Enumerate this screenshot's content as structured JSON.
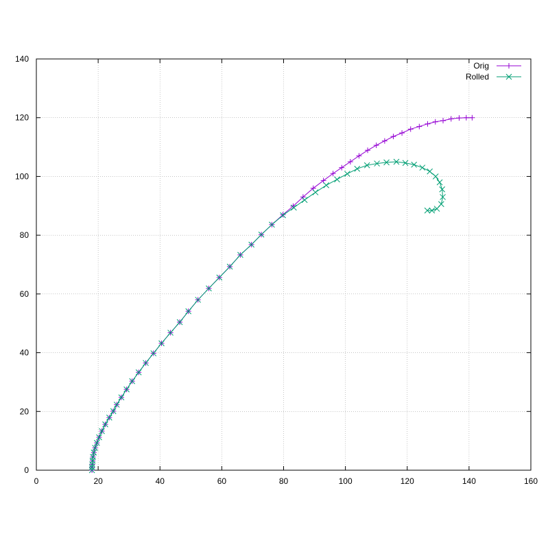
{
  "chart_data": {
    "type": "line",
    "title": "",
    "xlabel": "",
    "ylabel": "",
    "xlim": [
      0,
      160
    ],
    "ylim": [
      0,
      140
    ],
    "x_ticks": [
      0,
      20,
      40,
      60,
      80,
      100,
      120,
      140,
      160
    ],
    "y_ticks": [
      0,
      20,
      40,
      60,
      80,
      100,
      120,
      140
    ],
    "grid": true,
    "legend_position": "top-right",
    "series": [
      {
        "name": "Orig",
        "color": "#9400d3",
        "marker": "plus",
        "points": [
          [
            18.0,
            0.0
          ],
          [
            18.0,
            1.0
          ],
          [
            18.1,
            2.0
          ],
          [
            18.2,
            3.2
          ],
          [
            18.3,
            4.5
          ],
          [
            18.6,
            6.0
          ],
          [
            19.0,
            7.6
          ],
          [
            19.6,
            9.3
          ],
          [
            20.3,
            11.2
          ],
          [
            21.2,
            13.3
          ],
          [
            22.3,
            15.6
          ],
          [
            23.6,
            17.9
          ],
          [
            24.9,
            20.1
          ],
          [
            26.0,
            22.3
          ],
          [
            27.5,
            24.8
          ],
          [
            29.2,
            27.5
          ],
          [
            31.0,
            30.3
          ],
          [
            33.1,
            33.3
          ],
          [
            35.4,
            36.5
          ],
          [
            37.9,
            39.8
          ],
          [
            40.5,
            43.2
          ],
          [
            43.4,
            46.8
          ],
          [
            46.4,
            50.4
          ],
          [
            49.2,
            54.1
          ],
          [
            52.3,
            58.0
          ],
          [
            55.8,
            61.9
          ],
          [
            59.2,
            65.6
          ],
          [
            62.6,
            69.3
          ],
          [
            66.0,
            73.3
          ],
          [
            69.6,
            76.8
          ],
          [
            72.8,
            80.2
          ],
          [
            76.2,
            83.6
          ],
          [
            79.8,
            87.0
          ],
          [
            83.1,
            89.9
          ],
          [
            86.3,
            93.0
          ],
          [
            89.6,
            96.0
          ],
          [
            92.9,
            98.6
          ],
          [
            96.0,
            101.0
          ],
          [
            98.8,
            103.0
          ],
          [
            101.6,
            105.0
          ],
          [
            104.4,
            107.0
          ],
          [
            107.2,
            108.9
          ],
          [
            110.0,
            110.6
          ],
          [
            112.7,
            112.1
          ],
          [
            115.5,
            113.6
          ],
          [
            118.3,
            114.8
          ],
          [
            121.1,
            116.1
          ],
          [
            123.9,
            117.0
          ],
          [
            126.6,
            117.9
          ],
          [
            129.1,
            118.6
          ],
          [
            131.6,
            119.0
          ],
          [
            134.2,
            119.6
          ],
          [
            136.8,
            119.9
          ],
          [
            139.1,
            120.0
          ],
          [
            141.0,
            120.0
          ]
        ]
      },
      {
        "name": "Rolled",
        "color": "#009e73",
        "marker": "cross",
        "points": [
          [
            18.0,
            0.0
          ],
          [
            18.0,
            1.0
          ],
          [
            18.1,
            2.0
          ],
          [
            18.2,
            3.2
          ],
          [
            18.3,
            4.5
          ],
          [
            18.6,
            6.0
          ],
          [
            19.0,
            7.6
          ],
          [
            19.6,
            9.3
          ],
          [
            20.3,
            11.2
          ],
          [
            21.2,
            13.3
          ],
          [
            22.3,
            15.6
          ],
          [
            23.6,
            17.9
          ],
          [
            24.9,
            20.1
          ],
          [
            26.0,
            22.3
          ],
          [
            27.5,
            24.8
          ],
          [
            29.2,
            27.5
          ],
          [
            31.0,
            30.3
          ],
          [
            33.1,
            33.3
          ],
          [
            35.4,
            36.5
          ],
          [
            37.9,
            39.8
          ],
          [
            40.5,
            43.2
          ],
          [
            43.4,
            46.8
          ],
          [
            46.4,
            50.4
          ],
          [
            49.2,
            54.1
          ],
          [
            52.3,
            58.0
          ],
          [
            55.8,
            61.9
          ],
          [
            59.2,
            65.6
          ],
          [
            62.6,
            69.3
          ],
          [
            66.0,
            73.3
          ],
          [
            69.6,
            76.8
          ],
          [
            72.8,
            80.2
          ],
          [
            76.2,
            83.6
          ],
          [
            79.8,
            86.8
          ],
          [
            83.3,
            89.4
          ],
          [
            86.8,
            92.0
          ],
          [
            90.3,
            94.6
          ],
          [
            93.8,
            97.0
          ],
          [
            97.3,
            99.0
          ],
          [
            100.6,
            100.9
          ],
          [
            103.8,
            102.6
          ],
          [
            107.0,
            103.8
          ],
          [
            110.2,
            104.4
          ],
          [
            113.3,
            104.8
          ],
          [
            116.5,
            105.0
          ],
          [
            119.4,
            104.6
          ],
          [
            122.2,
            104.0
          ],
          [
            124.9,
            103.0
          ],
          [
            127.3,
            101.7
          ],
          [
            129.2,
            100.0
          ],
          [
            130.5,
            98.0
          ],
          [
            131.3,
            95.6
          ],
          [
            131.5,
            93.0
          ],
          [
            131.0,
            90.6
          ],
          [
            129.6,
            89.0
          ],
          [
            128.0,
            88.4
          ],
          [
            126.5,
            88.4
          ]
        ]
      }
    ]
  }
}
